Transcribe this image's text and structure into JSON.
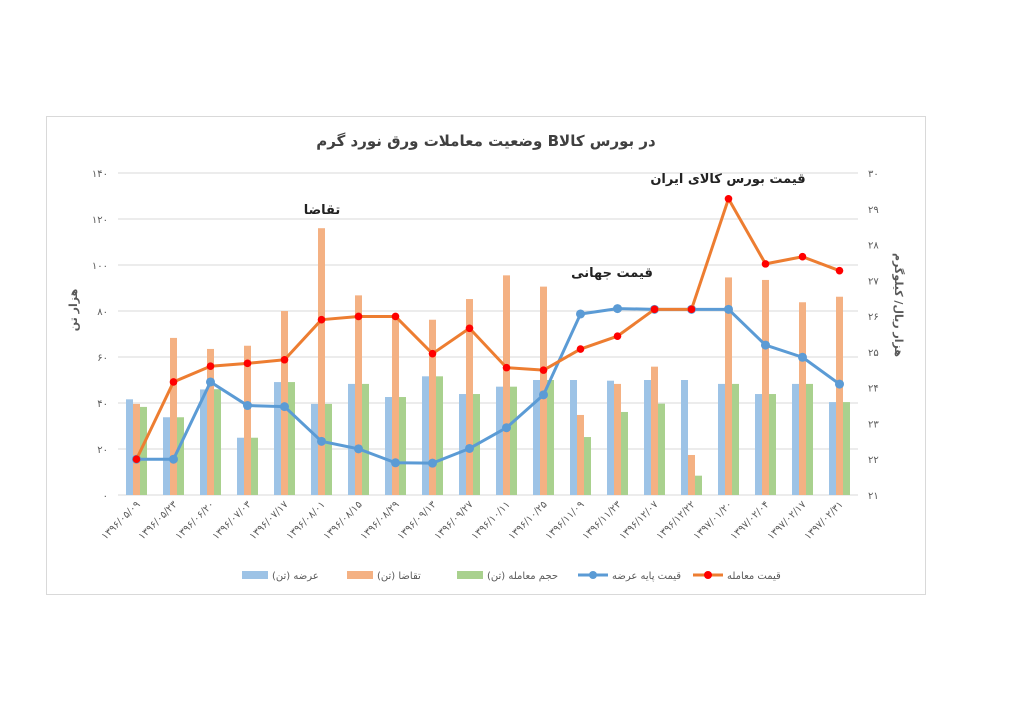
{
  "chart_data": {
    "type": "bar+line",
    "title": "وضعیت معاملات ورق نورد گرم   Bدر بورس کالا",
    "ylabel_left": "هزار تن",
    "ylabel_right": "هزار ریال/ کیلوگرم",
    "ylim_left": [
      0,
      140
    ],
    "ylim_right": [
      21,
      30
    ],
    "yticks_left": [
      "۰",
      "۲۰",
      "۴۰",
      "۶۰",
      "۸۰",
      "۱۰۰",
      "۱۲۰",
      "۱۴۰"
    ],
    "yticks_right": [
      "۲۱",
      "۲۲",
      "۲۳",
      "۲۴",
      "۲۵",
      "۲۶",
      "۲۷",
      "۲۸",
      "۲۹",
      "۳۰"
    ],
    "grid": true,
    "legend_position": "bottom",
    "categories": [
      "۱۳۹۶/۰۵/۰۹",
      "۱۳۹۶/۰۵/۲۳",
      "۱۳۹۶/۰۶/۲۰",
      "۱۳۹۶/۰۷/۰۳",
      "۱۳۹۶/۰۷/۱۷",
      "۱۳۹۶/۰۸/۰۱",
      "۱۳۹۶/۰۸/۱۵",
      "۱۳۹۶/۰۸/۲۹",
      "۱۳۹۶/۰۹/۱۳",
      "۱۳۹۶/۰۹/۲۷",
      "۱۳۹۶/۱۰/۱۱",
      "۱۳۹۶/۱۰/۲۵",
      "۱۳۹۶/۱۱/۰۹",
      "۱۳۹۶/۱۱/۲۳",
      "۱۳۹۶/۱۲/۰۷",
      "۱۳۹۶/۱۲/۲۲",
      "۱۳۹۷/۰۱/۲۰",
      "۱۳۹۷/۰۲/۰۴",
      "۱۳۹۷/۰۲/۱۷",
      "۱۳۹۷/۰۲/۳۱"
    ],
    "series": [
      {
        "name": "عرضه (تن)",
        "type": "bar",
        "axis": "left",
        "color": "#9dc3e6",
        "values": [
          41.6,
          33.8,
          45.9,
          24.9,
          49.1,
          39.6,
          48.3,
          42.6,
          51.6,
          43.9,
          47.1,
          50,
          50,
          49.7,
          50,
          50,
          48.3,
          43.9,
          48.3,
          40.4
        ]
      },
      {
        "name": "تقاضا (تن)",
        "type": "bar",
        "axis": "left",
        "color": "#f4b183",
        "values": [
          39.6,
          68.3,
          63.5,
          64.9,
          80,
          116,
          86.8,
          77.5,
          76.2,
          85.2,
          95.5,
          90.6,
          34.8,
          48.3,
          55.8,
          17.4,
          94.6,
          93.5,
          83.8,
          86.2
        ]
      },
      {
        "name": "حجم معامله (تن)",
        "type": "bar",
        "axis": "left",
        "color": "#a9d18e",
        "values": [
          38.3,
          33.8,
          46,
          24.9,
          49.1,
          39.6,
          48.3,
          42.6,
          51.6,
          43.9,
          47.1,
          50,
          25.2,
          36.1,
          39.7,
          8.4,
          48.3,
          43.9,
          48.3,
          40.4
        ]
      },
      {
        "name": "قیمت پایه عرضه",
        "type": "line",
        "axis": "right",
        "color": "#5b9bd5",
        "marker_color": "#5b9bd5",
        "values": [
          22.0,
          22.0,
          24.16,
          23.5,
          23.47,
          22.5,
          22.29,
          21.9,
          21.89,
          22.3,
          22.88,
          23.8,
          26.06,
          26.21,
          26.19,
          26.19,
          26.19,
          25.19,
          24.85,
          24.1
        ]
      },
      {
        "name": "قیمت معامله",
        "type": "line",
        "axis": "right",
        "color": "#ed7d31",
        "marker_color": "#ff0000",
        "values": [
          22.0,
          24.16,
          24.6,
          24.68,
          24.78,
          25.9,
          25.99,
          25.99,
          24.95,
          25.66,
          24.56,
          24.49,
          25.08,
          25.44,
          26.19,
          26.19,
          29.28,
          27.46,
          27.66,
          27.27
        ]
      }
    ],
    "annotations": [
      "تقاضا",
      "قیمت جهانی",
      "قیمت بورس کالای ایران"
    ]
  }
}
